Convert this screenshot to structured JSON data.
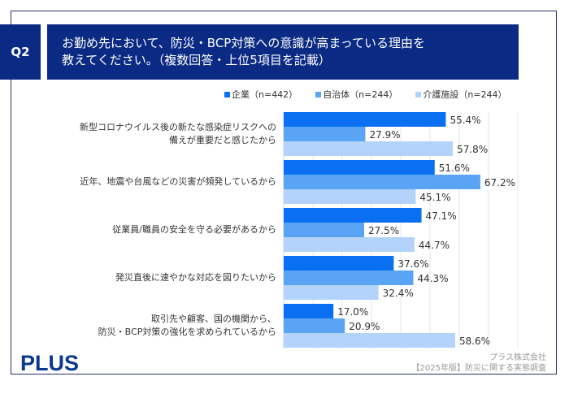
{
  "header": {
    "question_no": "Q2",
    "title_line1": "お勤め先において、防災・BCP対策への意識が高まっている理由を",
    "title_line2": "教えてください。（複数回答・上位5項目を記載）"
  },
  "colors": {
    "frame": "#27306b",
    "header_bg": "#0b2a84",
    "series": [
      "#0a6ff0",
      "#5aa4f5",
      "#b3d3fb"
    ]
  },
  "chart_data": {
    "type": "bar",
    "orientation": "horizontal",
    "title": "お勤め先において、防災・BCP対策への意識が高まっている理由を教えてください。（複数回答・上位5項目を記載）",
    "xlim": [
      0,
      80
    ],
    "grid": true,
    "gridlines": [
      0,
      10,
      20,
      30,
      40,
      50,
      60,
      70,
      80
    ],
    "legend_position": "top-right",
    "categories": [
      [
        "新型コロナウイルス後の新たな感染症リスクへの",
        "備えが重要だと感じたから"
      ],
      [
        "近年、地震や台風などの災害が頻発しているから"
      ],
      [
        "従業員/職員の安全を守る必要があるから"
      ],
      [
        "発災直後に速やかな対応を図りたいから"
      ],
      [
        "取引先や顧客、国の機関から、",
        "防災・BCP対策の強化を求められているから"
      ]
    ],
    "series": [
      {
        "name": "企業（n=442）",
        "values": [
          55.4,
          51.6,
          47.1,
          37.6,
          17.0
        ],
        "labels": [
          "55.4%",
          "51.6%",
          "47.1%",
          "37.6%",
          "17.0%"
        ]
      },
      {
        "name": "自治体（n=244）",
        "values": [
          27.9,
          67.2,
          27.5,
          44.3,
          20.9
        ],
        "labels": [
          "27.9%",
          "67.2%",
          "27.5%",
          "44.3%",
          "20.9%"
        ]
      },
      {
        "name": "介護施設（n=244）",
        "values": [
          57.8,
          45.1,
          44.7,
          32.4,
          58.6
        ],
        "labels": [
          "57.8%",
          "45.1%",
          "44.7%",
          "32.4%",
          "58.6%"
        ]
      }
    ]
  },
  "footer": {
    "logo": "PLUS",
    "source_line1": "プラス株式会社",
    "source_line2": "【2025年版】防災に関する実態調査"
  }
}
